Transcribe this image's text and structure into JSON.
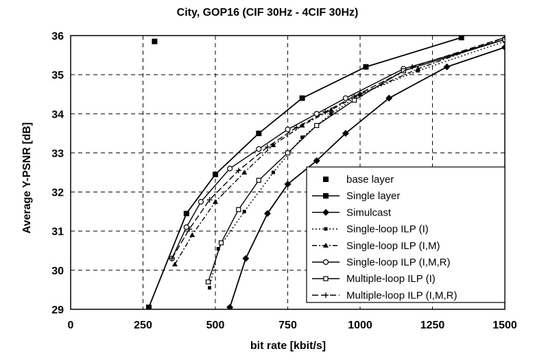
{
  "chart_data": {
    "type": "line",
    "title": "City, GOP16 (CIF 30Hz - 4CIF 30Hz)",
    "xlabel": "bit rate [kbit/s]",
    "ylabel": "Average Y-PSNR [dB]",
    "xlim": [
      0,
      1500
    ],
    "ylim": [
      29,
      36
    ],
    "xticks": [
      0,
      250,
      500,
      750,
      1000,
      1250,
      1500
    ],
    "yticks": [
      29,
      30,
      31,
      32,
      33,
      34,
      35,
      36
    ],
    "grid": true,
    "legend_position": "bottom-right",
    "series": [
      {
        "name": "base layer",
        "style": "marker-only",
        "marker": "filled-square",
        "dash": "none",
        "x": [
          290
        ],
        "y": [
          35.85
        ]
      },
      {
        "name": "Single layer",
        "style": "solid",
        "marker": "filled-square",
        "dash": "solid",
        "x": [
          270,
          400,
          500,
          650,
          800,
          1020,
          1350
        ],
        "y": [
          29.05,
          31.45,
          32.45,
          33.5,
          34.4,
          35.2,
          35.95
        ]
      },
      {
        "name": "Simulcast",
        "style": "solid",
        "marker": "filled-diamond",
        "dash": "solid",
        "x": [
          550,
          605,
          680,
          750,
          850,
          950,
          1100,
          1300,
          1500
        ],
        "y": [
          29.05,
          30.3,
          31.45,
          32.2,
          32.8,
          33.5,
          34.4,
          35.2,
          35.7
        ]
      },
      {
        "name": "Single-loop ILP (I)",
        "style": "dotted",
        "marker": "small-dot",
        "dash": "2,3",
        "x": [
          480,
          510,
          600,
          700,
          800,
          900,
          1000,
          1200,
          1500
        ],
        "y": [
          29.55,
          30.55,
          31.5,
          32.5,
          33.4,
          34.0,
          34.5,
          35.1,
          35.85
        ]
      },
      {
        "name": "Single-loop ILP (I,M)",
        "style": "dash-dot",
        "marker": "filled-triangle",
        "dash": "7,3,2,3",
        "x": [
          360,
          420,
          500,
          600,
          700,
          800,
          900,
          1000,
          1200,
          1500
        ],
        "y": [
          30.15,
          30.9,
          31.75,
          32.5,
          33.2,
          33.7,
          34.1,
          34.5,
          35.15,
          35.95
        ]
      },
      {
        "name": "Single-loop ILP (I,M,R)",
        "style": "solid",
        "marker": "open-circle",
        "dash": "solid",
        "x": [
          350,
          400,
          450,
          550,
          650,
          750,
          850,
          950,
          1150,
          1500
        ],
        "y": [
          30.3,
          31.1,
          31.75,
          32.6,
          33.1,
          33.6,
          34.0,
          34.4,
          35.15,
          35.9
        ]
      },
      {
        "name": "Multiple-loop ILP (I)",
        "style": "solid",
        "marker": "open-square",
        "dash": "solid",
        "x": [
          475,
          520,
          580,
          650,
          750,
          850,
          980,
          1150,
          1500
        ],
        "y": [
          29.7,
          30.7,
          31.55,
          32.3,
          33.0,
          33.7,
          34.35,
          35.1,
          35.9
        ]
      },
      {
        "name": "Multiple-loop ILP (I,M,R)",
        "style": "long-dash",
        "marker": "plus",
        "dash": "9,4",
        "x": [
          350,
          410,
          480,
          580,
          680,
          780,
          880,
          980,
          1180,
          1500
        ],
        "y": [
          30.3,
          31.05,
          31.8,
          32.55,
          33.15,
          33.65,
          34.05,
          34.45,
          35.2,
          35.95
        ]
      }
    ]
  }
}
